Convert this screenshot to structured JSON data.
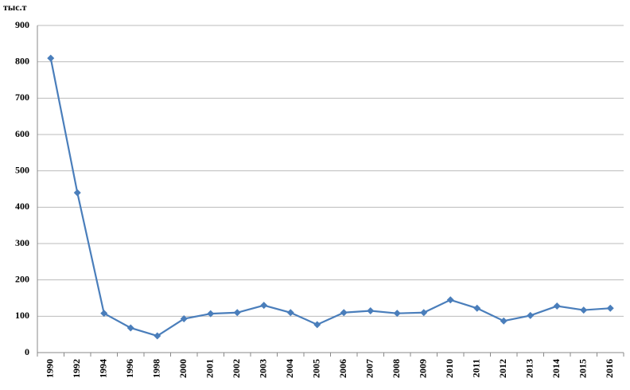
{
  "chart_data": {
    "type": "line",
    "y_unit": "тыс.т",
    "categories": [
      "1990",
      "1992",
      "1994",
      "1996",
      "1998",
      "2000",
      "2001",
      "2002",
      "2003",
      "2004",
      "2005",
      "2006",
      "2007",
      "2008",
      "2009",
      "2010",
      "2011",
      "2012",
      "2013",
      "2014",
      "2015",
      "2016"
    ],
    "series": [
      {
        "color": "#4a7ebb",
        "values": [
          810,
          440,
          108,
          68,
          46,
          93,
          107,
          110,
          130,
          110,
          77,
          110,
          115,
          108,
          110,
          145,
          122,
          87,
          102,
          128,
          117,
          122
        ]
      }
    ],
    "ylim": [
      0,
      900
    ],
    "yticks": [
      0,
      100,
      200,
      300,
      400,
      500,
      600,
      700,
      800,
      900
    ],
    "grid": true
  }
}
